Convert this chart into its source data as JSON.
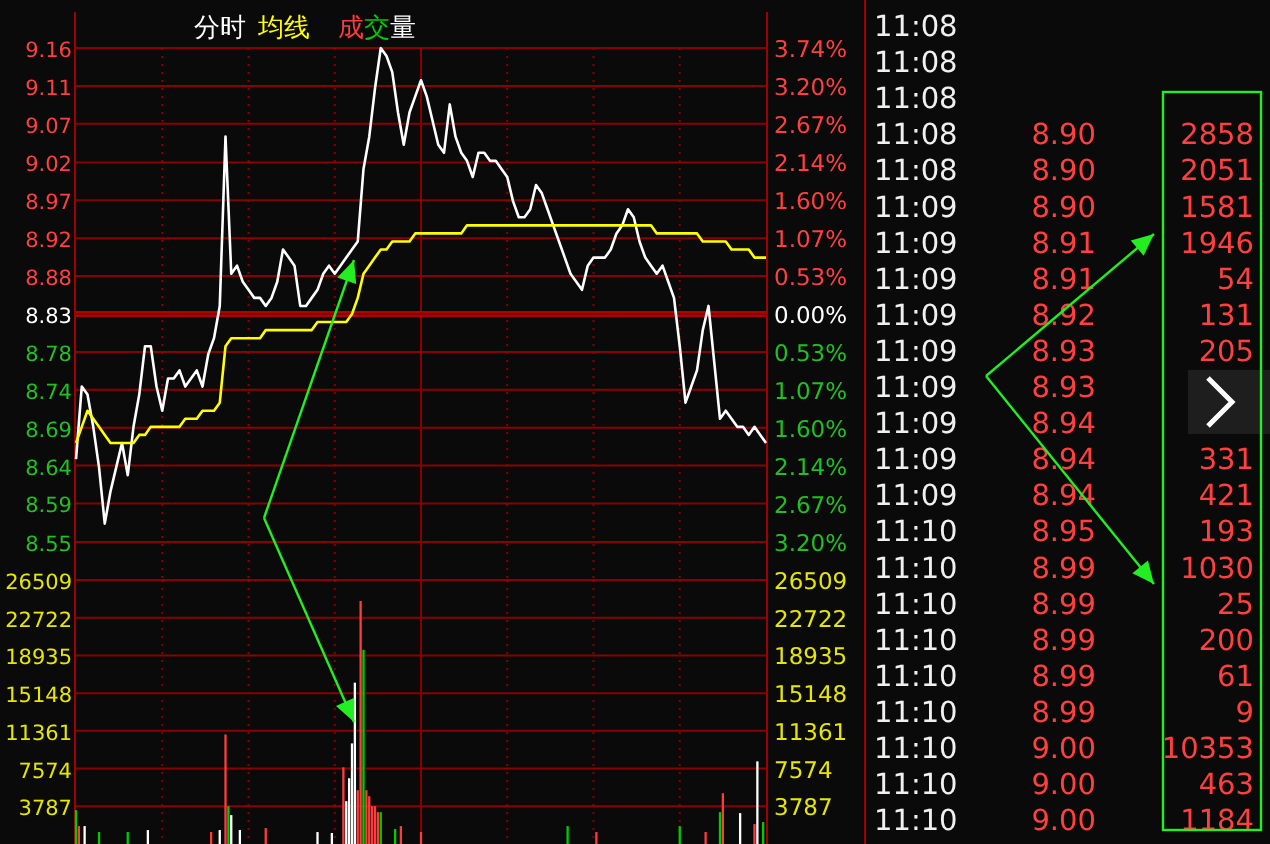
{
  "chart_data": [
    {
      "type": "line",
      "annotations": [
        "成交量"
      ],
      "grid": true,
      "tick_labels": "y",
      "line_style": "solid",
      "categories": [
        null,
        null,
        null,
        null,
        null,
        null,
        null,
        null,
        null,
        null,
        null,
        null,
        null,
        null,
        null,
        null,
        null,
        null,
        null,
        null,
        null,
        null,
        null,
        null,
        null,
        null,
        null,
        null,
        null,
        null,
        null,
        null,
        null,
        null,
        null,
        null,
        null,
        null,
        null,
        null,
        null,
        null,
        null,
        null,
        null,
        null,
        null,
        null,
        null,
        null,
        null,
        null,
        null,
        null,
        null,
        null,
        null,
        null,
        null,
        null,
        null,
        null,
        null,
        null,
        null,
        null,
        null,
        null,
        null,
        null,
        null,
        null,
        null,
        null,
        null,
        null,
        null,
        null,
        null,
        null,
        null,
        null,
        null,
        null,
        null,
        null,
        null,
        null,
        null,
        null,
        null,
        null,
        null,
        null,
        null,
        null,
        null,
        null,
        null,
        null,
        null,
        null,
        null,
        null,
        null,
        null,
        null,
        null,
        null,
        null,
        null,
        null,
        null,
        null,
        null,
        null,
        null,
        null,
        null,
        null,
        null
      ],
      "ylim": [
        8.5,
        9.16
      ],
      "yticks": [
        {
          "value": 9.16,
          "label": "9.16"
        },
        {
          "value": 9.113,
          "label": "9.11"
        },
        {
          "value": 9.066,
          "label": "9.07"
        },
        {
          "value": 9.018,
          "label": "9.02"
        },
        {
          "value": 8.971,
          "label": "8.97"
        },
        {
          "value": 8.924,
          "label": "8.92"
        },
        {
          "value": 8.877,
          "label": "8.88"
        },
        {
          "value": 8.83,
          "label": "8.83"
        },
        {
          "value": 8.783,
          "label": "8.78"
        },
        {
          "value": 8.736,
          "label": "8.74"
        },
        {
          "value": 8.689,
          "label": "8.69"
        },
        {
          "value": 8.642,
          "label": "8.64"
        },
        {
          "value": 8.595,
          "label": "8.59"
        },
        {
          "value": 8.547,
          "label": "8.55"
        }
      ],
      "y2lim": [
        -3.74,
        3.74
      ],
      "y2ticks": [
        {
          "value": 3.74,
          "label": "3.74%"
        },
        {
          "value": 3.2,
          "label": "3.20%"
        },
        {
          "value": 2.67,
          "label": "2.67%"
        },
        {
          "value": 2.14,
          "label": "2.14%"
        },
        {
          "value": 1.6,
          "label": "1.60%"
        },
        {
          "value": 1.07,
          "label": "1.07%"
        },
        {
          "value": 0.53,
          "label": "0.53%"
        },
        {
          "value": 0,
          "label": "0.00%"
        },
        {
          "value": -0.53,
          "label": "0.53%"
        },
        {
          "value": -1.07,
          "label": "1.07%"
        },
        {
          "value": -1.6,
          "label": "1.60%"
        },
        {
          "value": -2.14,
          "label": "2.14%"
        },
        {
          "value": -2.67,
          "label": "2.67%"
        },
        {
          "value": -3.2,
          "label": "3.20%"
        }
      ],
      "ref_lines": [
        {
          "axis": "y",
          "value": 8.83,
          "label": null
        }
      ],
      "series": [
        {
          "name": "分时",
          "color": "#ffffff",
          "values": [
            8.65,
            8.74,
            8.73,
            8.69,
            8.64,
            8.57,
            8.61,
            8.64,
            8.67,
            8.63,
            8.69,
            8.73,
            8.79,
            8.79,
            8.74,
            8.71,
            8.75,
            8.75,
            8.76,
            8.74,
            8.75,
            8.76,
            8.74,
            8.78,
            8.8,
            8.84,
            9.05,
            8.88,
            8.89,
            8.87,
            8.86,
            8.85,
            8.85,
            8.84,
            8.85,
            8.87,
            8.91,
            8.9,
            8.89,
            8.84,
            8.84,
            8.85,
            8.86,
            8.88,
            8.89,
            8.88,
            8.89,
            8.9,
            8.91,
            8.92,
            9.01,
            9.05,
            9.11,
            9.16,
            9.15,
            9.13,
            9.08,
            9.04,
            9.08,
            9.1,
            9.12,
            9.1,
            9.07,
            9.04,
            9.03,
            9.09,
            9.05,
            9.03,
            9.02,
            9.0,
            9.03,
            9.03,
            9.02,
            9.02,
            9.01,
            9.0,
            8.97,
            8.95,
            8.95,
            8.96,
            8.99,
            8.98,
            8.96,
            8.94,
            8.92,
            8.9,
            8.88,
            8.87,
            8.86,
            8.89,
            8.9,
            8.9,
            8.9,
            8.91,
            8.93,
            8.94,
            8.96,
            8.95,
            8.92,
            8.9,
            8.89,
            8.88,
            8.89,
            8.87,
            8.85,
            8.79,
            8.72,
            8.74,
            8.76,
            8.81,
            8.84,
            8.77,
            8.7,
            8.71,
            8.7,
            8.69,
            8.69,
            8.68,
            8.69,
            8.68,
            8.67
          ]
        },
        {
          "name": "均线",
          "color": "#ffff00",
          "values": [
            8.67,
            8.69,
            8.71,
            8.7,
            8.69,
            8.68,
            8.67,
            8.67,
            8.67,
            8.67,
            8.67,
            8.68,
            8.68,
            8.69,
            8.69,
            8.69,
            8.69,
            8.69,
            8.69,
            8.7,
            8.7,
            8.7,
            8.71,
            8.71,
            8.71,
            8.72,
            8.79,
            8.8,
            8.8,
            8.8,
            8.8,
            8.8,
            8.8,
            8.81,
            8.81,
            8.81,
            8.81,
            8.81,
            8.81,
            8.81,
            8.81,
            8.81,
            8.82,
            8.82,
            8.82,
            8.82,
            8.82,
            8.82,
            8.83,
            8.85,
            8.88,
            8.89,
            8.9,
            8.91,
            8.91,
            8.92,
            8.92,
            8.92,
            8.92,
            8.93,
            8.93,
            8.93,
            8.93,
            8.93,
            8.93,
            8.93,
            8.93,
            8.93,
            8.94,
            8.94,
            8.94,
            8.94,
            8.94,
            8.94,
            8.94,
            8.94,
            8.94,
            8.94,
            8.94,
            8.94,
            8.94,
            8.94,
            8.94,
            8.94,
            8.94,
            8.94,
            8.94,
            8.94,
            8.94,
            8.94,
            8.94,
            8.94,
            8.94,
            8.94,
            8.94,
            8.94,
            8.94,
            8.94,
            8.94,
            8.94,
            8.94,
            8.93,
            8.93,
            8.93,
            8.93,
            8.93,
            8.93,
            8.93,
            8.93,
            8.92,
            8.92,
            8.92,
            8.92,
            8.92,
            8.91,
            8.91,
            8.91,
            8.91,
            8.9,
            8.9,
            8.9
          ]
        }
      ]
    },
    {
      "type": "bar",
      "grid": true,
      "tick_labels": "y",
      "categories": [
        null,
        null,
        null,
        null,
        null,
        null,
        null,
        null,
        null,
        null,
        null,
        null,
        null,
        null,
        null,
        null,
        null,
        null,
        null,
        null,
        null,
        null,
        null,
        null,
        null,
        null,
        null,
        null,
        null,
        null,
        null,
        null,
        null,
        null,
        null,
        null,
        null,
        null,
        null,
        null,
        null,
        null,
        null,
        null,
        null,
        null,
        null,
        null,
        null,
        null,
        null,
        null,
        null,
        null,
        null,
        null,
        null,
        null,
        null,
        null,
        null,
        null,
        null,
        null,
        null,
        null,
        null,
        null,
        null,
        null,
        null,
        null,
        null,
        null,
        null,
        null,
        null,
        null,
        null,
        null,
        null,
        null,
        null,
        null,
        null,
        null,
        null,
        null,
        null,
        null,
        null,
        null,
        null,
        null,
        null,
        null,
        null,
        null,
        null,
        null,
        null,
        null,
        null,
        null,
        null,
        null,
        null,
        null,
        null,
        null,
        null,
        null,
        null,
        null,
        null,
        null,
        null,
        null,
        null,
        null,
        null,
        null,
        null,
        null,
        null,
        null,
        null,
        null,
        null,
        null,
        null,
        null,
        null,
        null,
        null,
        null,
        null,
        null,
        null,
        null,
        null,
        null,
        null,
        null,
        null,
        null,
        null,
        null,
        null,
        null,
        null,
        null,
        null,
        null,
        null,
        null,
        null,
        null,
        null,
        null,
        null,
        null,
        null,
        null,
        null,
        null,
        null,
        null,
        null,
        null,
        null,
        null,
        null,
        null,
        null,
        null,
        null,
        null,
        null,
        null,
        null,
        null,
        null,
        null,
        null,
        null,
        null,
        null,
        null,
        null,
        null,
        null,
        null,
        null,
        null,
        null,
        null,
        null,
        null,
        null,
        null,
        null,
        null,
        null,
        null,
        null,
        null,
        null,
        null,
        null,
        null,
        null,
        null,
        null,
        null,
        null,
        null,
        null,
        null,
        null,
        null,
        null,
        null,
        null,
        null,
        null,
        null,
        null,
        null,
        null,
        null,
        null,
        null,
        null,
        null,
        null,
        null,
        null,
        null,
        null,
        null
      ],
      "ylim": [
        0,
        26509
      ],
      "yticks": [
        {
          "value": 26509,
          "label": "26509"
        },
        {
          "value": 22722,
          "label": "22722"
        },
        {
          "value": 18935,
          "label": "18935"
        },
        {
          "value": 15148,
          "label": "15148"
        },
        {
          "value": 11361,
          "label": "11361"
        },
        {
          "value": 7574,
          "label": "7574"
        },
        {
          "value": 3787,
          "label": "3787"
        }
      ],
      "y2lim": [
        0,
        26509
      ],
      "y2ticks": [
        {
          "value": 26509,
          "label": "26509"
        },
        {
          "value": 22722,
          "label": "22722"
        },
        {
          "value": 18935,
          "label": "18935"
        },
        {
          "value": 15148,
          "label": "15148"
        },
        {
          "value": 11361,
          "label": "11361"
        },
        {
          "value": 7574,
          "label": "7574"
        },
        {
          "value": 3787,
          "label": "3787"
        }
      ],
      "values": [
        3400,
        1800,
        null,
        1800,
        null,
        null,
        null,
        null,
        1200,
        null,
        null,
        null,
        null,
        null,
        null,
        null,
        null,
        null,
        1200,
        null,
        null,
        null,
        null,
        null,
        null,
        1400,
        null,
        null,
        null,
        null,
        null,
        null,
        null,
        null,
        null,
        null,
        null,
        null,
        null,
        null,
        null,
        null,
        null,
        null,
        null,
        null,
        null,
        1200,
        null,
        null,
        1400,
        null,
        11000,
        3800,
        2900,
        null,
        null,
        1400,
        null,
        null,
        null,
        null,
        null,
        null,
        null,
        null,
        1600,
        null,
        null,
        null,
        null,
        null,
        null,
        null,
        null,
        null,
        null,
        null,
        null,
        null,
        null,
        null,
        null,
        null,
        1200,
        null,
        null,
        null,
        null,
        1100,
        null,
        null,
        null,
        7700,
        4300,
        6600,
        10100,
        16200,
        5400,
        24400,
        19500,
        5400,
        4800,
        3800,
        3800,
        3200,
        3200,
        null,
        null,
        null,
        null,
        1500,
        null,
        1800,
        null,
        null,
        null,
        null,
        null,
        null,
        1200,
        null,
        null,
        null,
        null,
        null,
        null,
        null,
        null,
        null,
        null,
        null,
        null,
        null,
        null,
        null,
        null,
        null,
        null,
        null,
        null,
        null,
        null,
        null,
        null,
        null,
        null,
        null,
        null,
        null,
        null,
        null,
        null,
        null,
        null,
        null,
        null,
        null,
        null,
        null,
        null,
        null,
        null,
        null,
        null,
        null,
        null,
        null,
        null,
        null,
        null,
        1800,
        null,
        null,
        null,
        null,
        null,
        null,
        null,
        null,
        null,
        1200,
        null,
        null,
        null,
        null,
        null,
        null,
        null,
        null,
        null,
        null,
        null,
        null,
        null,
        null,
        null,
        null,
        null,
        null,
        null,
        null,
        null,
        null,
        null,
        null,
        null,
        null,
        null,
        null,
        1800,
        null,
        null,
        null,
        null,
        null,
        null,
        null,
        null,
        1200,
        null,
        null,
        null,
        null,
        3200,
        5100,
        null,
        null,
        null,
        null,
        null,
        3100,
        null,
        null,
        null,
        null,
        2000,
        8300,
        null,
        2200,
        null
      ],
      "colors": [
        "#00cc00",
        "#ff3c3c",
        null,
        "#ffffff",
        null,
        null,
        null,
        null,
        "#00cc00",
        null,
        null,
        null,
        null,
        null,
        null,
        null,
        null,
        null,
        "#00cc00",
        null,
        null,
        null,
        null,
        null,
        null,
        "#ffffff",
        null,
        null,
        null,
        null,
        null,
        null,
        null,
        null,
        null,
        null,
        null,
        null,
        null,
        null,
        null,
        null,
        null,
        null,
        null,
        null,
        null,
        "#ff3c3c",
        null,
        null,
        "#ffffff",
        null,
        "#ff3c3c",
        "#00cc00",
        "#ffffff",
        null,
        null,
        "#ffffff",
        null,
        null,
        null,
        null,
        null,
        null,
        null,
        null,
        "#ff3c3c",
        null,
        null,
        null,
        null,
        null,
        null,
        null,
        null,
        null,
        null,
        null,
        null,
        null,
        null,
        null,
        null,
        null,
        "#ffffff",
        null,
        null,
        null,
        null,
        "#ffffff",
        null,
        null,
        null,
        "#ff3c3c",
        "#ffffff",
        "#ffffff",
        "#ffffff",
        "#ffffff",
        "#ff3c3c",
        "#ff3c3c",
        "#00cc00",
        "#ff3c3c",
        "#ff3c3c",
        "#ff3c3c",
        "#ff3c3c",
        "#ff3c3c",
        "#00cc00",
        null,
        null,
        null,
        null,
        "#00cc00",
        null,
        "#ff3c3c",
        null,
        null,
        null,
        null,
        null,
        null,
        "#ff3c3c",
        null,
        null,
        null,
        null,
        null,
        null,
        null,
        null,
        null,
        null,
        null,
        null,
        null,
        null,
        null,
        null,
        null,
        null,
        null,
        null,
        null,
        null,
        null,
        null,
        null,
        null,
        null,
        null,
        null,
        null,
        null,
        null,
        null,
        null,
        null,
        null,
        null,
        null,
        null,
        null,
        null,
        null,
        null,
        null,
        null,
        null,
        null,
        null,
        null,
        null,
        "#00cc00",
        null,
        null,
        null,
        null,
        null,
        null,
        null,
        null,
        null,
        "#ff3c3c",
        null,
        null,
        null,
        null,
        null,
        null,
        null,
        null,
        null,
        null,
        null,
        null,
        null,
        null,
        null,
        null,
        null,
        null,
        null,
        null,
        null,
        null,
        null,
        null,
        null,
        null,
        null,
        null,
        "#00cc00",
        null,
        null,
        null,
        null,
        null,
        null,
        null,
        null,
        "#ff3c3c",
        null,
        null,
        null,
        null,
        "#00cc00",
        "#ff3c3c",
        null,
        null,
        null,
        null,
        null,
        "#ffffff",
        null,
        null,
        null,
        null,
        "#ff3c3c",
        "#ffffff",
        null,
        "#00cc00",
        null
      ]
    },
    {
      "type": "other",
      "data_labels": true,
      "categories": [
        "11:08",
        "11:08",
        "11:08",
        "11:08",
        "11:08",
        "11:09",
        "11:09",
        "11:09",
        "11:09",
        "11:09",
        "11:09",
        "11:09",
        "11:09",
        "11:09",
        "11:10",
        "11:10",
        "11:10",
        "11:10",
        "11:10",
        "11:10",
        "11:10",
        "11:10",
        "11:10"
      ],
      "series": [
        {
          "color": "#ff4040",
          "values": [
            null,
            null,
            null,
            8.9,
            8.9,
            8.9,
            8.91,
            8.91,
            8.92,
            8.93,
            8.93,
            8.94,
            8.94,
            8.94,
            8.95,
            8.99,
            8.99,
            8.99,
            8.99,
            8.99,
            9.0,
            9.0,
            9.0
          ],
          "value_labels": [
            null,
            null,
            null,
            "8.90",
            "8.90",
            "8.90",
            "8.91",
            "8.91",
            "8.92",
            "8.93",
            "8.93",
            "8.94",
            "8.94",
            "8.94",
            "8.95",
            "8.99",
            "8.99",
            "8.99",
            "8.99",
            "8.99",
            "9.00",
            "9.00",
            "9.00"
          ]
        },
        {
          "color": "#ff4040",
          "values": [
            null,
            null,
            null,
            2858,
            2051,
            1581,
            1946,
            54,
            131,
            205,
            null,
            null,
            331,
            421,
            193,
            1030,
            25,
            200,
            61,
            9,
            10353,
            463,
            1184
          ],
          "value_labels": [
            null,
            null,
            null,
            "2858",
            "2051",
            "1581",
            "1946",
            "54",
            "131",
            "205",
            null,
            null,
            "331",
            "421",
            "193",
            "1030",
            "25",
            "200",
            "61",
            "9",
            "10353",
            "463",
            "1184"
          ]
        }
      ]
    }
  ]
}
